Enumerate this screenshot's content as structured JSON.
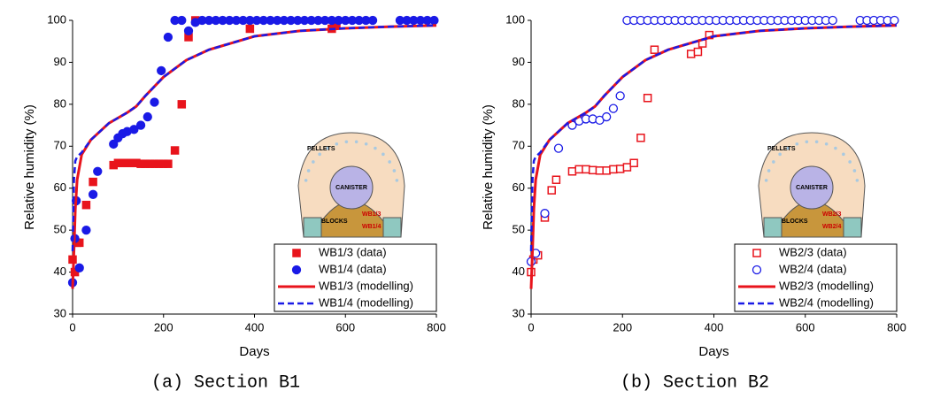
{
  "chart_data": [
    {
      "type": "scatter",
      "caption": "(a) Section B1",
      "xlabel": "Days",
      "ylabel": "Relative humidity (%)",
      "xlim": [
        0,
        800
      ],
      "ylim": [
        30,
        100
      ],
      "xticks": [
        0,
        200,
        400,
        600,
        800
      ],
      "yticks": [
        30,
        40,
        50,
        60,
        70,
        80,
        90,
        100
      ],
      "legend": "lower right",
      "inset_labels": [
        "PELLETS",
        "CANISTER",
        "BLOCKS",
        "WB1/3",
        "WB1/4"
      ],
      "series": [
        {
          "name": "WB1/3 (data)",
          "color": "#e8141c",
          "marker": "square",
          "filled": true,
          "x": [
            0,
            5,
            10,
            15,
            30,
            45,
            90,
            100,
            110,
            120,
            130,
            140,
            150,
            160,
            170,
            180,
            190,
            200,
            210,
            225,
            240,
            255,
            270,
            390,
            570,
            580
          ],
          "values": [
            43,
            40,
            47,
            47,
            56,
            61.5,
            65.5,
            66,
            66,
            66,
            66,
            66,
            65.8,
            65.8,
            65.8,
            65.8,
            65.8,
            65.8,
            65.8,
            69,
            80,
            96,
            100,
            98,
            98,
            99
          ]
        },
        {
          "name": "WB1/4 (data)",
          "color": "#1a1ae6",
          "marker": "circle",
          "filled": true,
          "x": [
            0,
            5,
            8,
            15,
            30,
            45,
            55,
            90,
            100,
            110,
            120,
            135,
            150,
            165,
            180,
            195,
            210,
            225,
            240,
            255,
            270,
            285,
            300,
            315,
            330,
            345,
            360,
            375,
            390,
            405,
            420,
            435,
            450,
            465,
            480,
            495,
            510,
            525,
            540,
            555,
            570,
            585,
            600,
            615,
            630,
            645,
            660,
            720,
            735,
            750,
            765,
            780,
            795
          ],
          "values": [
            37.5,
            48,
            57,
            41,
            50,
            58.5,
            64,
            70.5,
            72,
            73,
            73.5,
            74,
            75,
            77,
            80.5,
            88,
            96,
            100,
            100,
            97.5,
            99.5,
            100,
            100,
            100,
            100,
            100,
            100,
            100,
            100,
            100,
            100,
            100,
            100,
            100,
            100,
            100,
            100,
            100,
            100,
            100,
            100,
            100,
            100,
            100,
            100,
            100,
            100,
            100,
            100,
            100,
            100,
            100,
            100
          ]
        },
        {
          "name": "WB1/3 (modelling)",
          "color": "#e8141c",
          "marker": "line",
          "dashed": false,
          "x": [
            0,
            3,
            6,
            10,
            20,
            40,
            80,
            120,
            140,
            160,
            200,
            250,
            300,
            400,
            500,
            600,
            700,
            800
          ],
          "values": [
            36,
            45,
            55,
            62,
            68,
            71.5,
            75.5,
            78,
            79.5,
            82,
            86.5,
            90.5,
            93,
            96.2,
            97.5,
            98.1,
            98.5,
            98.8
          ]
        },
        {
          "name": "WB1/4 (modelling)",
          "color": "#1a1ae6",
          "marker": "line",
          "dashed": true,
          "x": [
            0,
            3,
            6,
            10,
            20,
            40,
            80,
            120,
            140,
            160,
            200,
            250,
            300,
            400,
            500,
            600,
            700,
            800
          ],
          "values": [
            45,
            62,
            66.5,
            67.5,
            68.5,
            71.5,
            75.5,
            78,
            79.5,
            82,
            86.5,
            90.5,
            93,
            96.2,
            97.5,
            98.1,
            98.5,
            98.8
          ]
        }
      ]
    },
    {
      "type": "scatter",
      "caption": "(b) Section B2",
      "xlabel": "Days",
      "ylabel": "Relative humidity (%)",
      "xlim": [
        0,
        800
      ],
      "ylim": [
        30,
        100
      ],
      "xticks": [
        0,
        200,
        400,
        600,
        800
      ],
      "yticks": [
        30,
        40,
        50,
        60,
        70,
        80,
        90,
        100
      ],
      "legend": "lower right",
      "inset_labels": [
        "PELLETS",
        "CANISTER",
        "BLOCKS",
        "WB2/3",
        "WB2/4"
      ],
      "series": [
        {
          "name": "WB2/3 (data)",
          "color": "#e8141c",
          "marker": "square",
          "filled": false,
          "x": [
            0,
            5,
            15,
            30,
            45,
            55,
            90,
            105,
            120,
            135,
            150,
            165,
            180,
            195,
            210,
            225,
            240,
            255,
            270,
            350,
            365,
            375,
            390
          ],
          "values": [
            40,
            43,
            44,
            53,
            59.5,
            62,
            64,
            64.5,
            64.5,
            64.3,
            64.2,
            64.2,
            64.5,
            64.6,
            65,
            66,
            72,
            81.5,
            93,
            92,
            92.5,
            94.5,
            96.5
          ]
        },
        {
          "name": "WB2/4 (data)",
          "color": "#1a1ae6",
          "marker": "circle",
          "filled": false,
          "x": [
            0,
            10,
            30,
            60,
            90,
            105,
            120,
            135,
            150,
            165,
            180,
            195,
            210,
            225,
            240,
            255,
            270,
            285,
            300,
            315,
            330,
            345,
            360,
            375,
            390,
            405,
            420,
            435,
            450,
            465,
            480,
            495,
            510,
            525,
            540,
            555,
            570,
            585,
            600,
            615,
            630,
            645,
            660,
            720,
            735,
            750,
            765,
            780,
            795
          ],
          "values": [
            42.5,
            44.5,
            54,
            69.5,
            75,
            76,
            76.5,
            76.5,
            76.2,
            77,
            79,
            82,
            100,
            100,
            100,
            100,
            100,
            100,
            100,
            100,
            100,
            100,
            100,
            100,
            100,
            100,
            100,
            100,
            100,
            100,
            100,
            100,
            100,
            100,
            100,
            100,
            100,
            100,
            100,
            100,
            100,
            100,
            100,
            100,
            100,
            100,
            100,
            100,
            100
          ]
        },
        {
          "name": "WB2/3 (modelling)",
          "color": "#e8141c",
          "marker": "line",
          "dashed": false,
          "x": [
            0,
            3,
            6,
            10,
            20,
            40,
            80,
            120,
            140,
            160,
            200,
            250,
            300,
            400,
            500,
            600,
            700,
            800
          ],
          "values": [
            36,
            45,
            55,
            62,
            68,
            71.5,
            75.5,
            78,
            79.5,
            82,
            86.5,
            90.5,
            93,
            96.2,
            97.5,
            98.1,
            98.5,
            98.8
          ]
        },
        {
          "name": "WB2/4 (modelling)",
          "color": "#1a1ae6",
          "marker": "line",
          "dashed": true,
          "x": [
            0,
            3,
            6,
            10,
            20,
            40,
            80,
            120,
            140,
            160,
            200,
            250,
            300,
            400,
            500,
            600,
            700,
            800
          ],
          "values": [
            45,
            62,
            66.5,
            67.5,
            68.5,
            71.5,
            75.5,
            78,
            79.5,
            82,
            86.5,
            90.5,
            93,
            96.2,
            97.5,
            98.1,
            98.5,
            98.8
          ]
        }
      ]
    }
  ]
}
